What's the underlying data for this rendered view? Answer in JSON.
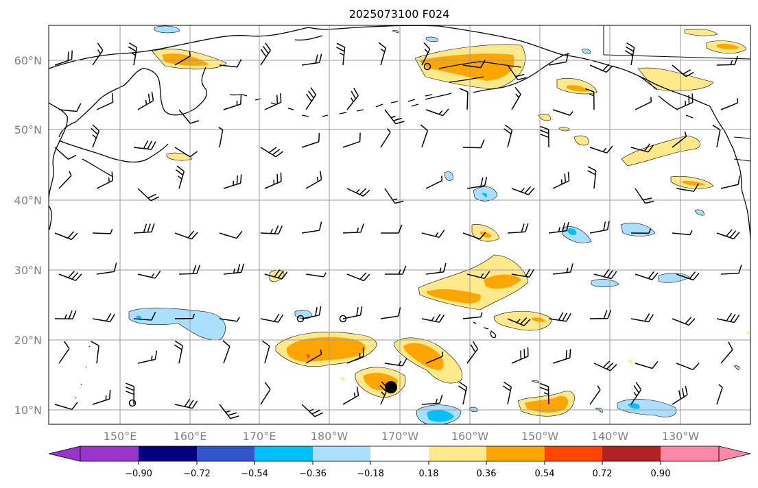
{
  "title": "2025073100 F024",
  "map": {
    "lat_labels": [
      "60°N",
      "50°N",
      "40°N",
      "30°N",
      "20°N",
      "10°N"
    ],
    "lon_labels": [
      "150°E",
      "160°E",
      "170°E",
      "180°W",
      "170°W",
      "160°W",
      "150°W",
      "140°W",
      "130°W"
    ],
    "grid": true,
    "storm_marker": "filled-circle"
  },
  "colorbar": {
    "tick_labels": [
      "−0.90",
      "−0.72",
      "−0.54",
      "−0.36",
      "−0.18",
      "0.18",
      "0.36",
      "0.54",
      "0.72",
      "0.90"
    ],
    "colors": [
      "#9933cc",
      "#000080",
      "#3355cc",
      "#00bfff",
      "#aadfff",
      "#ffffff",
      "#ffe98a",
      "#ffa500",
      "#ff4500",
      "#b22222",
      "#ff88aa"
    ],
    "extend": "both"
  }
}
